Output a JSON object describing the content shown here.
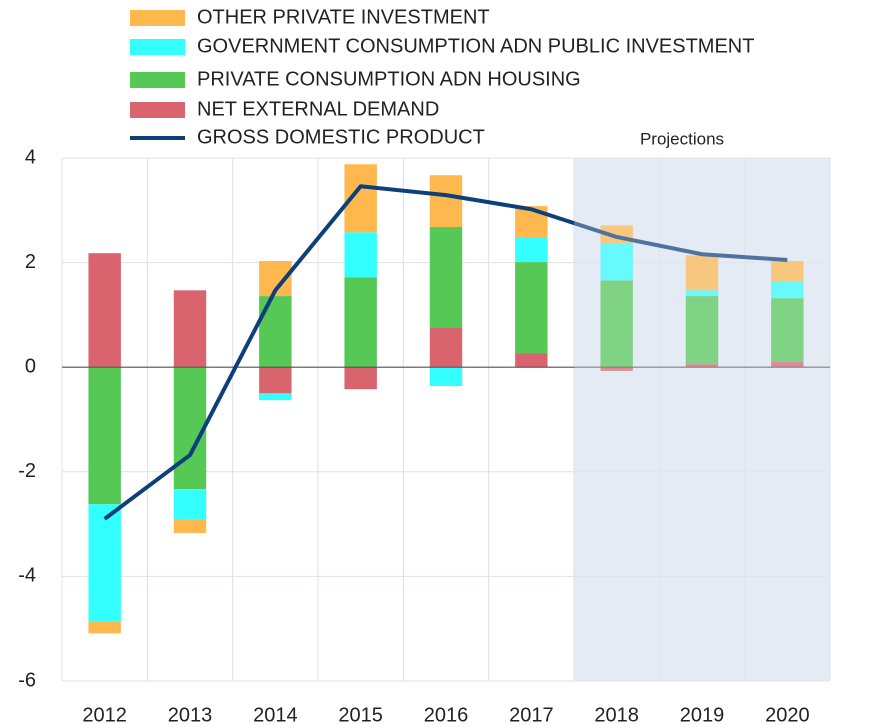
{
  "chart_data": {
    "type": "stacked_bar_line",
    "categories": [
      "2012",
      "2013",
      "2014",
      "2015",
      "2016",
      "2017",
      "2018",
      "2019",
      "2020"
    ],
    "series": [
      {
        "name": "OTHER PRIVATE INVESTMENT",
        "type": "bar",
        "color": "#ffb84d",
        "values": [
          -0.23,
          -0.25,
          0.67,
          1.3,
          0.99,
          0.61,
          0.34,
          0.67,
          0.4
        ]
      },
      {
        "name": "GOVERNMENT CONSUMPTION ADN PUBLIC INVESTMENT",
        "type": "bar",
        "color": "#33ffff",
        "values": [
          -2.24,
          -0.59,
          -0.13,
          0.86,
          -0.36,
          0.46,
          0.71,
          0.11,
          0.31
        ]
      },
      {
        "name": "PRIVATE CONSUMPTION ADN HOUSING",
        "type": "bar",
        "color": "#55c855",
        "values": [
          -2.62,
          -2.33,
          1.36,
          1.72,
          1.93,
          1.74,
          1.66,
          1.3,
          1.22
        ]
      },
      {
        "name": "NET EXTERNAL DEMAND",
        "type": "bar",
        "color": "#d9646e",
        "values": [
          2.18,
          1.47,
          -0.5,
          -0.42,
          0.75,
          0.27,
          -0.07,
          0.06,
          0.1
        ]
      },
      {
        "name": "GROSS DOMESTIC PRODUCT",
        "type": "line",
        "color": "#0d3f7a",
        "values": [
          -2.9,
          -1.68,
          1.47,
          3.46,
          3.29,
          3.02,
          2.49,
          2.16,
          2.05
        ]
      }
    ],
    "ylim": [
      -6,
      4
    ],
    "yticks": [
      -6,
      -4,
      -2,
      0,
      2,
      4
    ],
    "grid": true,
    "annotations": [
      {
        "text": "Projections",
        "from": "2018",
        "to": "2020"
      }
    ]
  }
}
